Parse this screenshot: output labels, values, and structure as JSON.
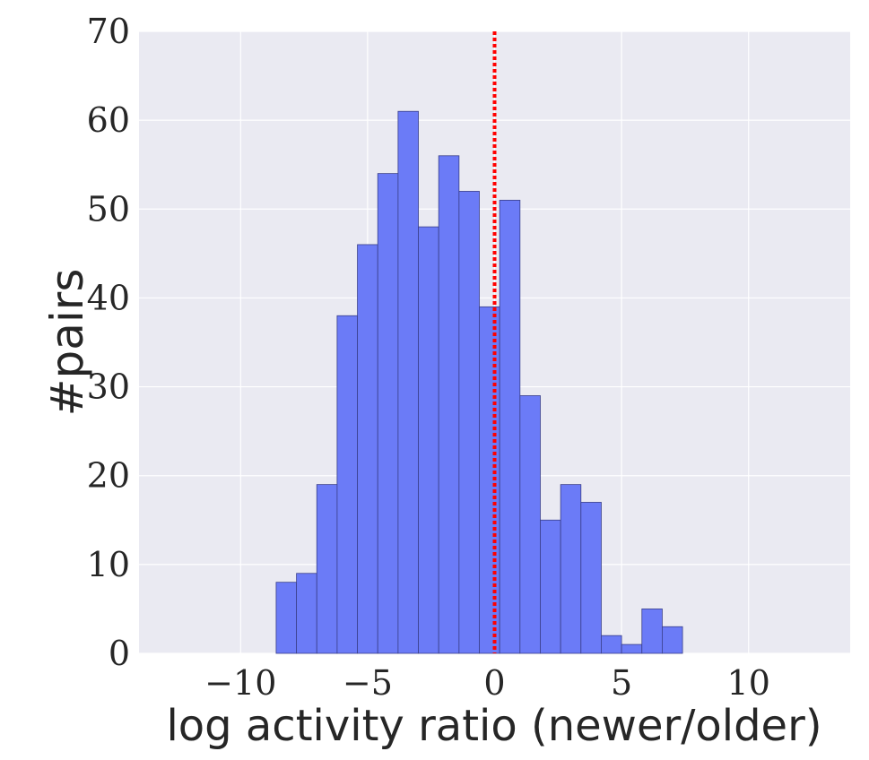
{
  "chart_data": {
    "type": "bar",
    "title": "",
    "xlabel": "log activity ratio (newer/older)",
    "ylabel": "#pairs",
    "xlim": [
      -14,
      14
    ],
    "ylim": [
      0,
      70
    ],
    "xticks": [
      -10,
      -5,
      0,
      5,
      10
    ],
    "xtick_labels": [
      "−10",
      "−5",
      "0",
      "5",
      "10"
    ],
    "yticks": [
      0,
      10,
      20,
      30,
      40,
      50,
      60,
      70
    ],
    "ytick_labels": [
      "0",
      "10",
      "20",
      "30",
      "40",
      "50",
      "60",
      "70"
    ],
    "grid": true,
    "bin_edges": [
      -8.6,
      -7.8,
      -7.0,
      -6.2,
      -5.4,
      -4.6,
      -3.8,
      -3.0,
      -2.2,
      -1.4,
      -0.6,
      0.2,
      1.0,
      1.8,
      2.6,
      3.4,
      4.2,
      5.0,
      5.8,
      6.6,
      7.4
    ],
    "counts": [
      8,
      9,
      19,
      38,
      46,
      54,
      61,
      48,
      56,
      52,
      39,
      51,
      29,
      15,
      19,
      17,
      2,
      1,
      5,
      3
    ],
    "reference_line": {
      "x": 0,
      "style": "dotted",
      "color": "#ff0000"
    },
    "colors": {
      "bar_fill": "#6b7bf7",
      "bar_edge": "#3a3f8a",
      "plot_background": "#eaeaf2",
      "grid": "#ffffff",
      "reference_line": "#ff0000"
    }
  }
}
